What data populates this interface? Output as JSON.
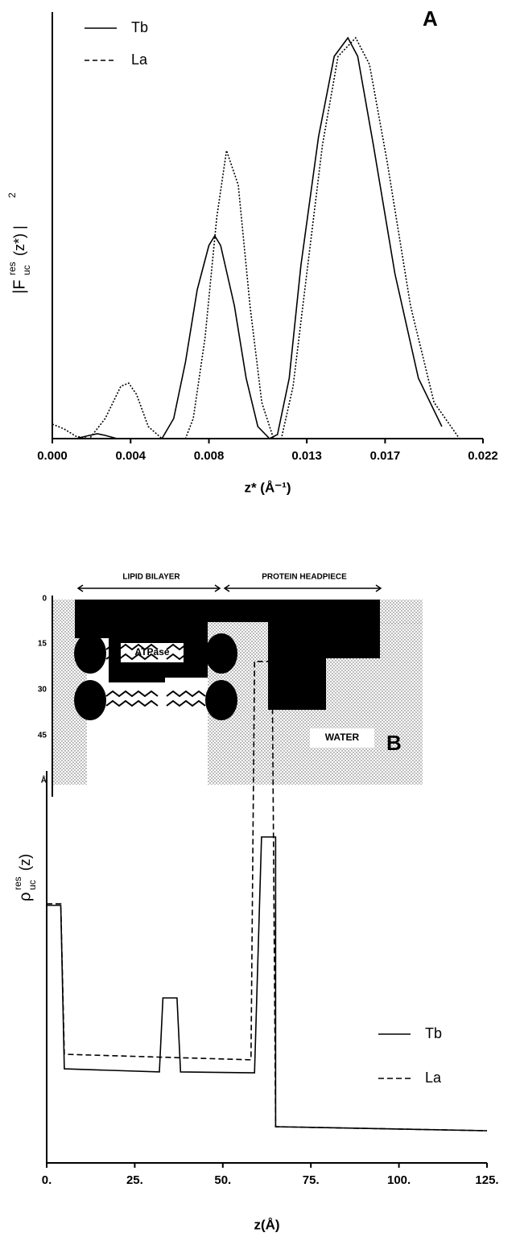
{
  "chart_data": [
    {
      "type": "line",
      "panel_label": "A",
      "xlabel": "z* (Å⁻¹)",
      "ylabel": [
        "|F",
        "res",
        "uc",
        "(z*) |",
        "2"
      ],
      "xlim": [
        0,
        0.022
      ],
      "ylim": [
        0,
        100
      ],
      "xticks": [
        {
          "value": 0,
          "label": "0.000"
        },
        0.004,
        0.008,
        0.013,
        0.017,
        0.022
      ],
      "legend": "upper left",
      "series": [
        {
          "name": "Tb",
          "color": "#000000",
          "linestyle": "solid",
          "x": [
            0,
            0.0012,
            0.0019,
            0.0023,
            0.0027,
            0.0033,
            0.0056,
            0.0062,
            0.0068,
            0.0074,
            0.008,
            0.0083,
            0.0086,
            0.0093,
            0.0099,
            0.0105,
            0.0111,
            0.0115,
            0.0121,
            0.0127,
            0.0136,
            0.0144,
            0.0151,
            0.0156,
            0.0164,
            0.0175,
            0.0187,
            0.0199
          ],
          "values": [
            0,
            0,
            0.8,
            1.2,
            0.8,
            0,
            0,
            5,
            19,
            37,
            48,
            50.4,
            48,
            33,
            15,
            3,
            0,
            1,
            15,
            43,
            75,
            95,
            99.6,
            95,
            73,
            41,
            15,
            3
          ]
        },
        {
          "name": "La",
          "color": "#000000",
          "linestyle": "dotted",
          "x": [
            0,
            0.0006,
            0.0012,
            0.0019,
            0.0027,
            0.0035,
            0.0039,
            0.0043,
            0.0049,
            0.0056,
            0.0068,
            0.0072,
            0.0078,
            0.0084,
            0.0089,
            0.0095,
            0.0101,
            0.0107,
            0.0113,
            0.0117,
            0.0123,
            0.013,
            0.0138,
            0.0146,
            0.0155,
            0.0162,
            0.0171,
            0.0183,
            0.0195,
            0.0208
          ],
          "values": [
            3.6,
            2.4,
            0.6,
            0,
            5,
            13,
            13.8,
            11,
            3,
            0,
            0,
            5,
            25,
            55,
            71.6,
            63,
            33,
            9,
            0,
            0,
            13,
            41,
            73,
            95,
            99.6,
            93,
            69,
            33,
            9,
            0
          ]
        }
      ]
    },
    {
      "type": "line",
      "panel_label": "B",
      "xlabel": "z(Å)",
      "ylabel": [
        "ρ",
        "res",
        "uc",
        "(z)"
      ],
      "xlim": [
        0,
        125
      ],
      "ylim": [
        0,
        100
      ],
      "xticks": [
        {
          "value": 0,
          "label": "0."
        },
        {
          "value": 25,
          "label": "25."
        },
        {
          "value": 50,
          "label": "50."
        },
        {
          "value": 75,
          "label": "75."
        },
        {
          "value": 100,
          "label": "100."
        },
        {
          "value": 125,
          "label": "125."
        }
      ],
      "legend": "center right",
      "series": [
        {
          "name": "Tb",
          "color": "#000000",
          "linestyle": "solid",
          "x": [
            0,
            4,
            5,
            32,
            33,
            37,
            38,
            59,
            61,
            65,
            65,
            125
          ],
          "values": [
            51.2,
            51.2,
            18.7,
            18.1,
            32.8,
            32.8,
            18.1,
            17.9,
            64.8,
            64.8,
            7.2,
            6.4
          ]
        },
        {
          "name": "La",
          "color": "#000000",
          "linestyle": "dashed",
          "x": [
            0,
            4,
            5,
            58,
            59,
            64,
            65,
            125
          ],
          "values": [
            51.5,
            51.5,
            21.6,
            20.5,
            99.7,
            99.7,
            7.2,
            6.4
          ]
        }
      ]
    }
  ],
  "diagram": {
    "regions": [
      "LIPID BILAYER",
      "PROTEIN HEADPIECE"
    ],
    "protein": "ATPase",
    "medium": "WATER",
    "depth_ticks": [
      0,
      15,
      30,
      45
    ],
    "depth_unit": "Å"
  }
}
